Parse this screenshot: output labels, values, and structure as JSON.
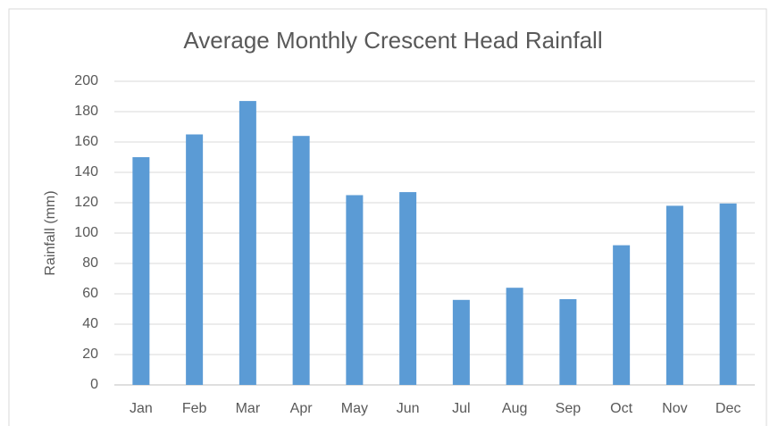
{
  "chart_data": {
    "type": "bar",
    "title": "Average Monthly Crescent Head Rainfall",
    "y_label": "Rainfall (mm)",
    "categories": [
      "Jan",
      "Feb",
      "Mar",
      "Apr",
      "May",
      "Jun",
      "Jul",
      "Aug",
      "Sep",
      "Oct",
      "Nov",
      "Dec"
    ],
    "values": [
      150,
      165,
      187,
      164,
      125,
      127,
      56,
      64,
      56.5,
      92,
      118,
      119.5
    ],
    "color": "#5b9bd5",
    "ylim": [
      0,
      200
    ],
    "yticks": [
      0,
      20,
      40,
      60,
      80,
      100,
      120,
      140,
      160,
      180,
      200
    ],
    "grid": true
  }
}
